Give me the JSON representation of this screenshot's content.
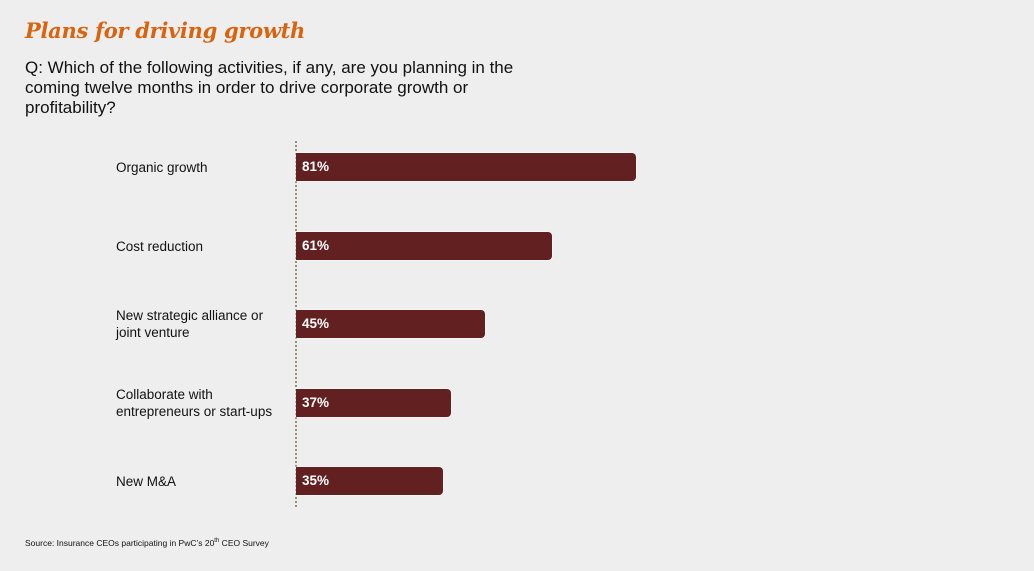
{
  "header": {
    "title": "Plans for driving growth",
    "question": "Q: Which of the following activities, if any, are you planning in the coming twelve months in order to drive corporate growth or profitability?"
  },
  "footer": {
    "source_prefix": "Source: Insurance CEOs participating in PwC’s 20",
    "source_sup": "th",
    "source_suffix": " CEO Survey"
  },
  "chart_data": {
    "type": "bar",
    "orientation": "horizontal",
    "title": "Plans for driving growth",
    "xlabel": "",
    "ylabel": "",
    "unit": "%",
    "xlim": [
      0,
      100
    ],
    "grid": false,
    "legend": "none",
    "bar_color": "#622120",
    "categories": [
      "Organic growth",
      "Cost reduction",
      "New strategic alliance or joint venture",
      "Collaborate with entrepreneurs or start-ups",
      "New M&A"
    ],
    "values": [
      81,
      61,
      45,
      37,
      35
    ],
    "value_labels": [
      "81%",
      "61%",
      "45%",
      "37%",
      "35%"
    ]
  }
}
